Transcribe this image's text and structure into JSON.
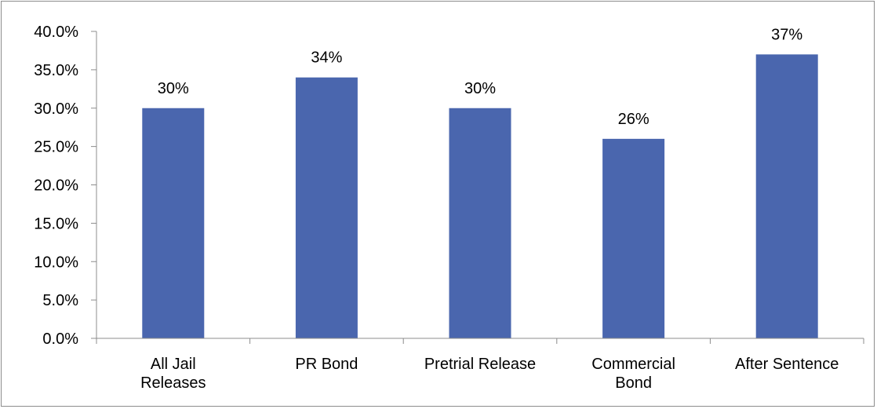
{
  "chart_data": {
    "type": "bar",
    "categories": [
      [
        "All Jail",
        "Releases"
      ],
      [
        "PR Bond"
      ],
      [
        "Pretrial Release"
      ],
      [
        "Commercial",
        "Bond"
      ],
      [
        "After Sentence"
      ]
    ],
    "values": [
      30,
      34,
      30,
      26,
      37
    ],
    "data_labels": [
      "30%",
      "34%",
      "30%",
      "26%",
      "37%"
    ],
    "yticks": [
      0,
      5,
      10,
      15,
      20,
      25,
      30,
      35,
      40
    ],
    "ytick_labels": [
      "0.0%",
      "5.0%",
      "10.0%",
      "15.0%",
      "20.0%",
      "25.0%",
      "30.0%",
      "35.0%",
      "40.0%"
    ],
    "ylim": [
      0,
      40
    ],
    "bar_color": "#4a66ae",
    "axis_color": "#8c8c8c",
    "grid": false,
    "legend": "none"
  }
}
